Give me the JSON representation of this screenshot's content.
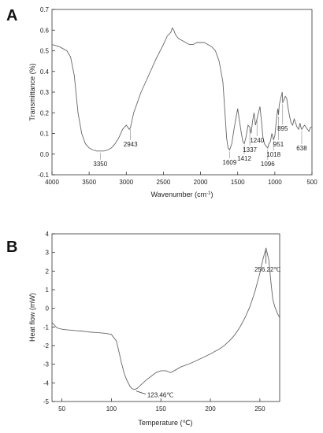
{
  "chart_data": [
    {
      "panel_label": "A",
      "type": "line",
      "xlabel": "Wavenumber (cm",
      "xlabel_sup": "-1",
      "xlabel_end": ")",
      "ylabel": "Transmittance (%)",
      "xlim": [
        4000,
        500
      ],
      "ylim": [
        -0.1,
        0.7
      ],
      "xticks": [
        "4000",
        "3500",
        "3000",
        "2500",
        "2000",
        "1500",
        "1000",
        "500"
      ],
      "yticks": [
        "-0.1",
        "0.0",
        "0.1",
        "0.2",
        "0.3",
        "0.4",
        "0.5",
        "0.6",
        "0.7"
      ],
      "series": [
        {
          "x": [
            4000,
            3900,
            3800,
            3750,
            3700,
            3650,
            3600,
            3550,
            3500,
            3450,
            3400,
            3350,
            3300,
            3250,
            3200,
            3150,
            3100,
            3050,
            3000,
            2980,
            2960,
            2943,
            2900,
            2800,
            2700,
            2600,
            2500,
            2450,
            2400,
            2380,
            2360,
            2340,
            2320,
            2300,
            2250,
            2200,
            2150,
            2100,
            2050,
            2000,
            1950,
            1900,
            1850,
            1800,
            1750,
            1700,
            1680,
            1650,
            1630,
            1609,
            1580,
            1550,
            1520,
            1500,
            1480,
            1450,
            1430,
            1412,
            1390,
            1360,
            1337,
            1320,
            1300,
            1280,
            1260,
            1240,
            1220,
            1200,
            1180,
            1160,
            1140,
            1120,
            1096,
            1080,
            1060,
            1040,
            1018,
            1000,
            980,
            960,
            951,
            940,
            920,
            900,
            895,
            880,
            860,
            840,
            820,
            800,
            780,
            760,
            740,
            720,
            700,
            680,
            660,
            650,
            638,
            620,
            600,
            580,
            560,
            540,
            520,
            500
          ],
          "y": [
            0.53,
            0.52,
            0.5,
            0.47,
            0.38,
            0.2,
            0.1,
            0.05,
            0.03,
            0.02,
            0.015,
            0.015,
            0.015,
            0.02,
            0.03,
            0.05,
            0.08,
            0.12,
            0.14,
            0.13,
            0.12,
            0.13,
            0.2,
            0.3,
            0.38,
            0.46,
            0.53,
            0.57,
            0.59,
            0.61,
            0.6,
            0.58,
            0.57,
            0.56,
            0.55,
            0.54,
            0.53,
            0.53,
            0.54,
            0.54,
            0.54,
            0.53,
            0.52,
            0.5,
            0.45,
            0.35,
            0.25,
            0.08,
            0.03,
            0.02,
            0.05,
            0.12,
            0.18,
            0.22,
            0.17,
            0.1,
            0.06,
            0.05,
            0.08,
            0.14,
            0.13,
            0.1,
            0.16,
            0.2,
            0.14,
            0.17,
            0.2,
            0.23,
            0.16,
            0.08,
            0.05,
            0.04,
            0.03,
            0.05,
            0.06,
            0.1,
            0.07,
            0.09,
            0.16,
            0.22,
            0.19,
            0.24,
            0.27,
            0.3,
            0.25,
            0.26,
            0.28,
            0.27,
            0.22,
            0.18,
            0.15,
            0.14,
            0.17,
            0.15,
            0.13,
            0.12,
            0.15,
            0.13,
            0.12,
            0.13,
            0.14,
            0.13,
            0.12,
            0.11,
            0.13,
            0.13
          ]
        }
      ],
      "annotations": [
        {
          "text": "3350",
          "x": 3350,
          "y": 0.015
        },
        {
          "text": "2943",
          "x": 2943,
          "y": 0.13
        },
        {
          "text": "1609",
          "x": 1609,
          "y": 0.02
        },
        {
          "text": "1412",
          "x": 1412,
          "y": 0.05
        },
        {
          "text": "1337",
          "x": 1337,
          "y": 0.13
        },
        {
          "text": "1240",
          "x": 1240,
          "y": 0.17
        },
        {
          "text": "1096",
          "x": 1096,
          "y": 0.03
        },
        {
          "text": "1018",
          "x": 1018,
          "y": 0.07
        },
        {
          "text": "951",
          "x": 951,
          "y": 0.19
        },
        {
          "text": "895",
          "x": 895,
          "y": 0.25
        },
        {
          "text": "638",
          "x": 638,
          "y": 0.12
        }
      ],
      "grid": false,
      "line_color": "#666666"
    },
    {
      "panel_label": "B",
      "type": "line",
      "xlabel": "Temperature (℃)",
      "ylabel": "Heat flow (mW)",
      "xlim": [
        40,
        270
      ],
      "ylim": [
        -5,
        4
      ],
      "xticks": [
        "50",
        "100",
        "150",
        "200",
        "250"
      ],
      "yticks": [
        "-5",
        "-4",
        "-3",
        "-2",
        "-1",
        "0",
        "1",
        "2",
        "3",
        "4"
      ],
      "series": [
        {
          "x": [
            40,
            45,
            50,
            55,
            60,
            65,
            70,
            75,
            80,
            85,
            90,
            95,
            100,
            105,
            108,
            110,
            113,
            116,
            119,
            121,
            123.46,
            126,
            130,
            135,
            140,
            145,
            150,
            155,
            160,
            165,
            170,
            180,
            190,
            200,
            210,
            215,
            220,
            225,
            230,
            235,
            240,
            245,
            250,
            253,
            256.22,
            259,
            261,
            263,
            265,
            268,
            270
          ],
          "y": [
            -0.75,
            -1.05,
            -1.12,
            -1.15,
            -1.17,
            -1.2,
            -1.22,
            -1.25,
            -1.28,
            -1.3,
            -1.32,
            -1.35,
            -1.4,
            -1.75,
            -2.4,
            -2.9,
            -3.5,
            -3.9,
            -4.2,
            -4.32,
            -4.35,
            -4.3,
            -4.1,
            -3.85,
            -3.65,
            -3.45,
            -3.35,
            -3.35,
            -3.45,
            -3.3,
            -3.15,
            -2.95,
            -2.7,
            -2.45,
            -2.15,
            -1.95,
            -1.7,
            -1.4,
            -1.0,
            -0.5,
            0.1,
            0.9,
            1.9,
            2.6,
            3.25,
            2.6,
            1.5,
            0.5,
            0.1,
            -0.3,
            -0.5
          ]
        }
      ],
      "annotations": [
        {
          "text": "123.46℃",
          "x": 123.46,
          "y": -4.35
        },
        {
          "text": "256.22℃",
          "x": 256.22,
          "y": 3.25
        }
      ],
      "grid": false,
      "line_color": "#666666"
    }
  ]
}
